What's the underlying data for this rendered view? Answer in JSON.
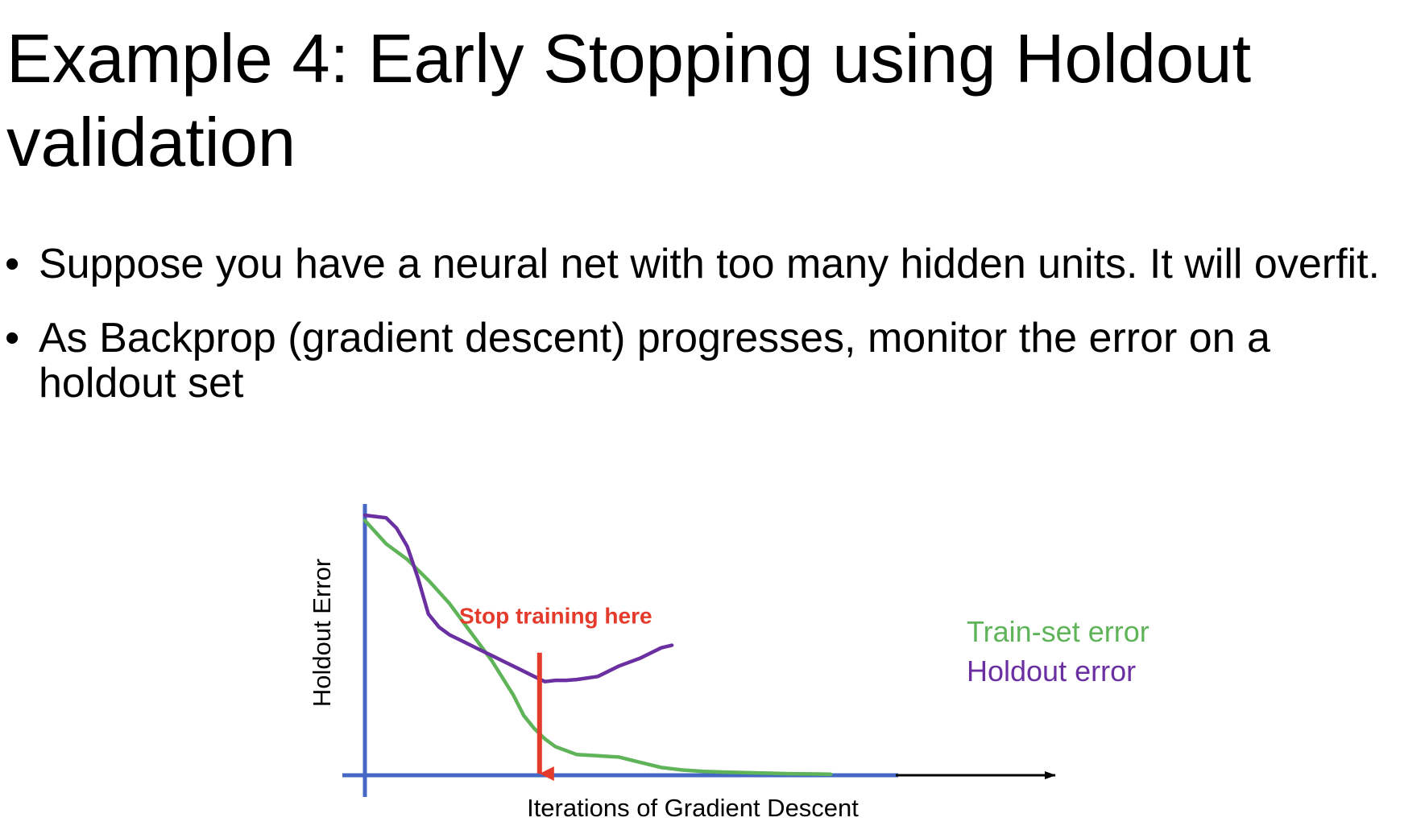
{
  "slide": {
    "title": "Example 4: Early Stopping using Holdout validation",
    "bullets": [
      "Suppose you have a neural net with too many hidden units. It will overfit.",
      "As Backprop (gradient descent) progresses, monitor the error on a holdout set"
    ],
    "bullet_symbol": "•"
  },
  "chart_data": {
    "type": "line",
    "title": "",
    "xlabel": "Iterations of Gradient Descent",
    "ylabel": "Holdout Error",
    "xlim": [
      0,
      100
    ],
    "ylim": [
      0,
      100
    ],
    "grid": false,
    "legend_position": "right",
    "annotation": {
      "text": "Stop training here",
      "x": 33,
      "y": 36,
      "color": "#e53b2c"
    },
    "series": [
      {
        "name": "Train-set error",
        "color": "#5fb358",
        "x": [
          0,
          4,
          8,
          12,
          16,
          20,
          24,
          28,
          30,
          32,
          34,
          36,
          40,
          44,
          48,
          52,
          56,
          60,
          64,
          68,
          72,
          76,
          80,
          84,
          88
        ],
        "y": [
          98,
          89,
          83,
          75,
          66,
          55,
          44,
          31,
          23,
          18,
          14,
          11,
          8,
          7.5,
          7,
          5,
          3,
          2,
          1.5,
          1.2,
          1,
          0.8,
          0.6,
          0.5,
          0.4
        ]
      },
      {
        "name": "Holdout error",
        "color": "#6a2fa0",
        "x": [
          0,
          2,
          4,
          6,
          8,
          10,
          12,
          14,
          16,
          18,
          20,
          22,
          24,
          26,
          28,
          30,
          32,
          34,
          36,
          38,
          40,
          44,
          48,
          52,
          56,
          58
        ],
        "y": [
          100,
          99.5,
          99,
          95,
          88,
          76,
          62,
          57,
          54,
          52,
          50,
          48,
          46,
          44,
          42,
          40,
          38,
          36,
          36.5,
          36.5,
          36.8,
          38,
          42,
          45,
          49,
          50
        ]
      }
    ]
  }
}
